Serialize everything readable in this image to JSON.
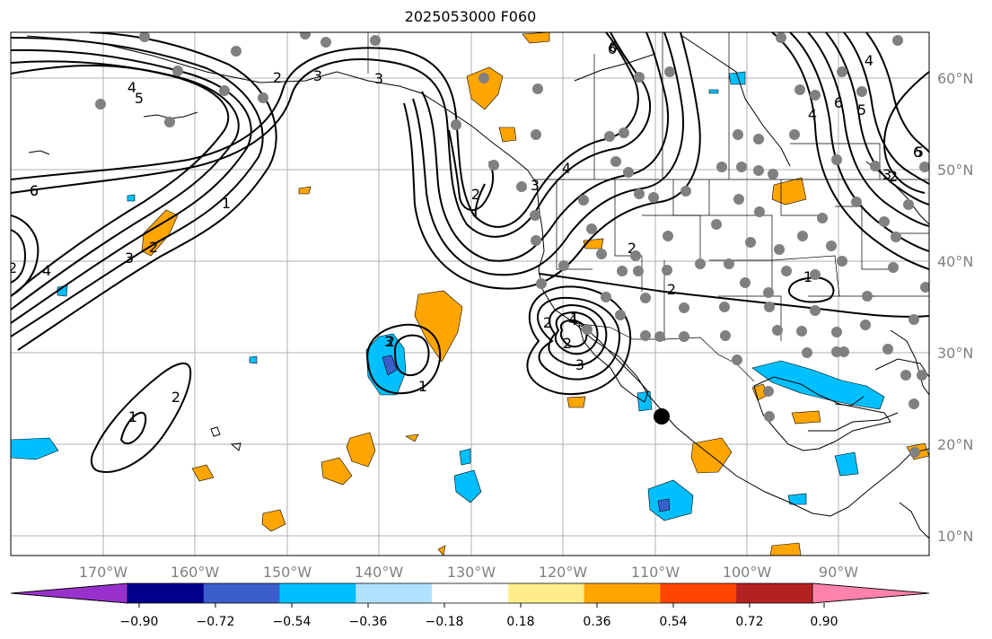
{
  "title": "2025053000 F060",
  "map": {
    "lon_labels": [
      "170°W",
      "160°W",
      "150°W",
      "140°W",
      "130°W",
      "120°W",
      "110°W",
      "100°W",
      "90°W"
    ],
    "lat_labels": [
      "60°N",
      "50°N",
      "40°N",
      "30°N",
      "20°N",
      "10°N"
    ],
    "contour_labels": [
      "4",
      "5",
      "3",
      "2",
      "6",
      "2",
      "4",
      "1",
      "3",
      "2",
      "3",
      "4",
      "3",
      "2",
      "6",
      "4",
      "6",
      "5",
      "4",
      "5",
      "3",
      "2",
      "1",
      "2",
      "4",
      "3",
      "2",
      "1",
      "3",
      "2",
      "1",
      "2",
      "1",
      "2",
      "6",
      "6",
      "2",
      "6"
    ]
  },
  "colorbar": {
    "colors": [
      "#9932cc",
      "#00008b",
      "#3a5fcd",
      "#00bfff",
      "#b0e2ff",
      "#ffffff",
      "#ffec8b",
      "#ffa500",
      "#ff4500",
      "#b22222",
      "#ff82ab"
    ],
    "tick_labels": [
      "−0.90",
      "−0.72",
      "−0.54",
      "−0.36",
      "−0.18",
      "0.18",
      "0.36",
      "0.54",
      "0.72",
      "0.90"
    ]
  }
}
